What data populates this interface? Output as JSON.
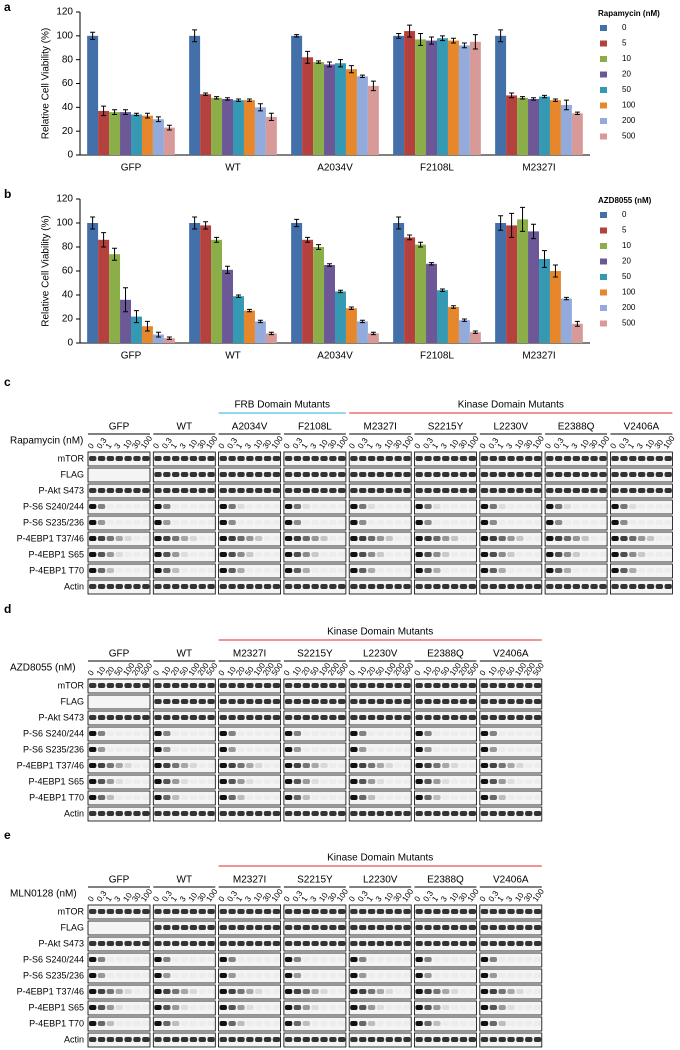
{
  "chart_data": [
    {
      "type": "bar",
      "panel_label": "a",
      "ylabel": "Relative Cell Viability (%)",
      "legend_title": "Rapamycin (nM)",
      "categories": [
        "GFP",
        "WT",
        "A2034V",
        "F2108L",
        "M2327I"
      ],
      "category_colors": [
        "#000000",
        "#000000",
        "#29abe2",
        "#29abe2",
        "#e8262a"
      ],
      "ylim": [
        0,
        120
      ],
      "yticks": [
        0,
        20,
        40,
        60,
        80,
        100,
        120
      ],
      "series": [
        {
          "name": "0",
          "color": "#4470aa",
          "values": [
            100,
            100,
            100,
            100,
            100
          ],
          "errors": [
            3,
            5,
            1,
            2,
            5
          ]
        },
        {
          "name": "5",
          "color": "#b5413f",
          "values": [
            37,
            51,
            82,
            104,
            50
          ],
          "errors": [
            4,
            1,
            5,
            5,
            2
          ]
        },
        {
          "name": "10",
          "color": "#8cae48",
          "values": [
            36,
            48,
            78,
            97,
            48
          ],
          "errors": [
            2,
            1,
            1,
            5,
            1
          ]
        },
        {
          "name": "20",
          "color": "#6c5897",
          "values": [
            36,
            47,
            76,
            96,
            47
          ],
          "errors": [
            2,
            1,
            2,
            3,
            1
          ]
        },
        {
          "name": "50",
          "color": "#3699b4",
          "values": [
            34,
            46,
            77,
            98,
            49
          ],
          "errors": [
            1,
            1,
            3,
            2,
            1
          ]
        },
        {
          "name": "100",
          "color": "#e6872c",
          "values": [
            33,
            46,
            72,
            96,
            46
          ],
          "errors": [
            2,
            1,
            3,
            2,
            1
          ]
        },
        {
          "name": "200",
          "color": "#92abdc",
          "values": [
            30,
            40,
            66,
            92,
            42
          ],
          "errors": [
            2,
            3,
            1,
            2,
            4
          ]
        },
        {
          "name": "500",
          "color": "#d89a99",
          "values": [
            23,
            32,
            58,
            95,
            35
          ],
          "errors": [
            2,
            3,
            4,
            6,
            1
          ]
        }
      ]
    },
    {
      "type": "bar",
      "panel_label": "b",
      "ylabel": "Relative Cell Viability (%)",
      "legend_title": "AZD8055 (nM)",
      "categories": [
        "GFP",
        "WT",
        "A2034V",
        "F2108L",
        "M2327I"
      ],
      "category_colors": [
        "#000000",
        "#000000",
        "#29abe2",
        "#29abe2",
        "#e8262a"
      ],
      "ylim": [
        0,
        120
      ],
      "yticks": [
        0,
        20,
        40,
        60,
        80,
        100,
        120
      ],
      "series": [
        {
          "name": "0",
          "color": "#4470aa",
          "values": [
            100,
            100,
            100,
            100,
            100
          ],
          "errors": [
            5,
            5,
            3,
            5,
            6
          ]
        },
        {
          "name": "5",
          "color": "#b5413f",
          "values": [
            86,
            98,
            86,
            88,
            98
          ],
          "errors": [
            6,
            3,
            2,
            2,
            10
          ]
        },
        {
          "name": "10",
          "color": "#8cae48",
          "values": [
            74,
            86,
            80,
            82,
            103
          ],
          "errors": [
            5,
            2,
            2,
            2,
            10
          ]
        },
        {
          "name": "20",
          "color": "#6c5897",
          "values": [
            36,
            61,
            65,
            66,
            93
          ],
          "errors": [
            10,
            3,
            1,
            1,
            6
          ]
        },
        {
          "name": "50",
          "color": "#3699b4",
          "values": [
            22,
            39,
            43,
            44,
            70
          ],
          "errors": [
            5,
            1,
            1,
            1,
            7
          ]
        },
        {
          "name": "100",
          "color": "#e6872c",
          "values": [
            14,
            27,
            29,
            30,
            60
          ],
          "errors": [
            4,
            1,
            1,
            1,
            5
          ]
        },
        {
          "name": "200",
          "color": "#92abdc",
          "values": [
            7,
            18,
            18,
            19,
            37
          ],
          "errors": [
            2,
            1,
            1,
            1,
            1
          ]
        },
        {
          "name": "500",
          "color": "#d89a99",
          "values": [
            4,
            8,
            8,
            9,
            16
          ],
          "errors": [
            1,
            1,
            1,
            1,
            2
          ]
        }
      ]
    }
  ],
  "blots": [
    {
      "panel_label": "c",
      "treatment_label": "Rapamycin (nM)",
      "doses": [
        "0",
        "0.3",
        "1",
        "3",
        "10",
        "30",
        "100"
      ],
      "lane_groups": [
        {
          "color": "#000000",
          "lanes": [
            "GFP",
            "WT"
          ]
        },
        {
          "header": "FRB Domain Mutants",
          "color": "#29abe2",
          "lanes": [
            "A2034V",
            "F2108L"
          ]
        },
        {
          "header": "Kinase Domain Mutants",
          "color": "#e8262a",
          "lanes": [
            "M2327I",
            "S2215Y",
            "L2230V",
            "E2388Q",
            "V2406A"
          ]
        }
      ],
      "rows": [
        "mTOR",
        "FLAG",
        "P-Akt S473",
        "P-S6 S240/244",
        "P-S6 S235/236",
        "P-4EBP1 T37/46",
        "P-4EBP1 S65",
        "P-4EBP1 T70",
        "Actin"
      ]
    },
    {
      "panel_label": "d",
      "treatment_label": "AZD8055 (nM)",
      "doses": [
        "0",
        "10",
        "20",
        "50",
        "100",
        "200",
        "500"
      ],
      "lane_groups": [
        {
          "color": "#000000",
          "lanes": [
            "GFP",
            "WT"
          ]
        },
        {
          "header": "Kinase Domain Mutants",
          "color": "#e8262a",
          "lanes": [
            "M2327I",
            "S2215Y",
            "L2230V",
            "E2388Q",
            "V2406A"
          ]
        }
      ],
      "rows": [
        "mTOR",
        "FLAG",
        "P-Akt S473",
        "P-S6 S240/244",
        "P-S6 S235/236",
        "P-4EBP1 T37/46",
        "P-4EBP1 S65",
        "P-4EBP1 T70",
        "Actin"
      ]
    },
    {
      "panel_label": "e",
      "treatment_label": "MLN0128 (nM)",
      "doses": [
        "0",
        "0.3",
        "1",
        "3",
        "10",
        "30",
        "100"
      ],
      "lane_groups": [
        {
          "color": "#000000",
          "lanes": [
            "GFP",
            "WT"
          ]
        },
        {
          "header": "Kinase Domain Mutants",
          "color": "#e8262a",
          "lanes": [
            "M2327I",
            "S2215Y",
            "L2230V",
            "E2388Q",
            "V2406A"
          ]
        }
      ],
      "rows": [
        "mTOR",
        "FLAG",
        "P-Akt S473",
        "P-S6 S240/244",
        "P-S6 S235/236",
        "P-4EBP1 T37/46",
        "P-4EBP1 S65",
        "P-4EBP1 T70",
        "Actin"
      ]
    }
  ]
}
